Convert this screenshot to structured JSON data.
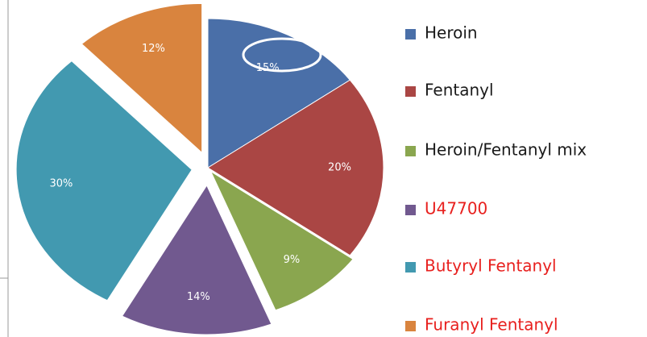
{
  "chart_data": {
    "type": "pie",
    "categories": [
      "Heroin",
      "Fentanyl",
      "Heroin/Fentanyl mix",
      "U47700",
      "Butyryl Fentanyl",
      "Furanyl Fentanyl"
    ],
    "values": [
      15,
      20,
      9,
      14,
      30,
      12
    ],
    "value_labels": [
      "15%",
      "20%",
      "9%",
      "14%",
      "30%",
      "12%"
    ],
    "colors": [
      "#4a6fa8",
      "#aa4644",
      "#8aa64f",
      "#71598f",
      "#4299b0",
      "#d9843e"
    ],
    "legend_label_colors": [
      "#1a1a1a",
      "#1a1a1a",
      "#1a1a1a",
      "#e8201e",
      "#e8201e",
      "#e8201e"
    ],
    "legend": "right"
  }
}
